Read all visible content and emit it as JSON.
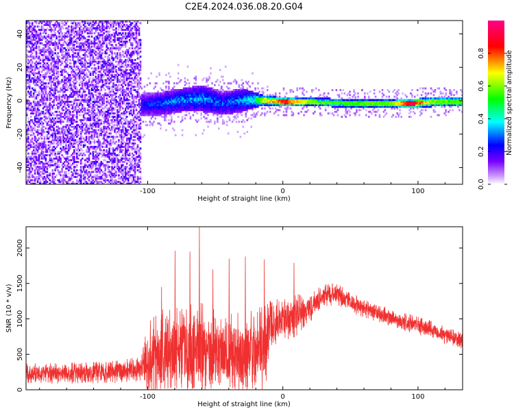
{
  "figure_title": "C2E4.2024.036.08.20.G04",
  "chart_data": [
    {
      "type": "heatmap",
      "title": "C2E4.2024.036.08.20.G04",
      "xlabel": "Height of straight line (km)",
      "ylabel": "Frequency (Hz)",
      "xlim": [
        -190,
        133
      ],
      "ylim": [
        -50,
        48
      ],
      "xticks": [
        -100,
        0,
        100
      ],
      "xtick_labels": [
        "-100",
        "0",
        "100"
      ],
      "yticks": [
        -40,
        -20,
        0,
        20,
        40
      ],
      "ytick_labels": [
        "-40",
        "-20",
        "0",
        "20",
        "40"
      ],
      "colorbar": {
        "label": "Normalized spectral amplitude",
        "range": [
          0.0,
          1.0
        ],
        "ticks": [
          0.0,
          0.2,
          0.4,
          0.6,
          0.8
        ],
        "tick_labels": [
          "0.0",
          "0.2",
          "0.4",
          "0.6",
          "0.8"
        ],
        "colormap": [
          "#ffffff",
          "#7800ff",
          "#0000ff",
          "#00ffff",
          "#00ff00",
          "#ffff00",
          "#ff0000",
          "#ff0088"
        ]
      },
      "grid": false,
      "signal_track": {
        "x": [
          -105,
          -90,
          -75,
          -60,
          -45,
          -30,
          -22,
          -15,
          0,
          20,
          50,
          80,
          95,
          110,
          133
        ],
        "frequency": [
          -3,
          -2,
          0,
          1,
          -2,
          0,
          0,
          0,
          -1,
          -1,
          -2,
          -2,
          -2,
          -1,
          -1
        ],
        "amplitude": [
          0.25,
          0.3,
          0.35,
          0.35,
          0.3,
          0.35,
          0.45,
          0.65,
          0.85,
          0.6,
          0.55,
          0.6,
          0.95,
          0.6,
          0.55
        ],
        "bandwidth_hz": [
          14,
          14,
          14,
          16,
          14,
          14,
          10,
          6,
          5,
          5,
          5,
          5,
          5,
          6,
          6
        ]
      },
      "noise_region": {
        "x_range": [
          -190,
          -105
        ],
        "amplitude": 0.25
      }
    },
    {
      "type": "line",
      "xlabel": "Height of straight line (km)",
      "ylabel": "SNR (10 * v/v)",
      "xlim": [
        -190,
        133
      ],
      "ylim": [
        0,
        2300
      ],
      "xticks": [
        -100,
        0,
        100
      ],
      "xtick_labels": [
        "-100",
        "0",
        "100"
      ],
      "yticks": [
        0,
        500,
        1000,
        1500,
        2000
      ],
      "ytick_labels": [
        "0",
        "500",
        "1000",
        "1500",
        "2000"
      ],
      "grid": false,
      "color": "#f03030",
      "series": [
        {
          "name": "SNR",
          "x": [
            -190,
            -170,
            -150,
            -130,
            -115,
            -105,
            -100,
            -90,
            -80,
            -70,
            -60,
            -50,
            -40,
            -30,
            -20,
            -12,
            -10,
            0,
            10,
            20,
            30,
            40,
            50,
            60,
            70,
            80,
            90,
            100,
            110,
            120,
            133
          ],
          "mean": [
            230,
            230,
            240,
            250,
            270,
            300,
            400,
            480,
            540,
            560,
            600,
            560,
            540,
            530,
            560,
            600,
            900,
            1000,
            1050,
            1150,
            1330,
            1350,
            1230,
            1150,
            1080,
            1020,
            960,
            900,
            850,
            780,
            700
          ],
          "spread": [
            150,
            150,
            150,
            160,
            170,
            180,
            550,
            650,
            650,
            650,
            650,
            620,
            600,
            600,
            600,
            600,
            350,
            330,
            300,
            200,
            160,
            160,
            140,
            130,
            130,
            130,
            130,
            130,
            130,
            130,
            130
          ],
          "peaks": [
            {
              "x": -62,
              "y": 2300
            },
            {
              "x": -80,
              "y": 1960
            },
            {
              "x": -69,
              "y": 1950
            },
            {
              "x": -28,
              "y": 1880
            },
            {
              "x": -14,
              "y": 1840
            },
            {
              "x": -40,
              "y": 1850
            },
            {
              "x": -90,
              "y": 1450
            },
            {
              "x": 8,
              "y": 1790
            },
            {
              "x": -52,
              "y": 1700
            }
          ]
        }
      ]
    }
  ]
}
